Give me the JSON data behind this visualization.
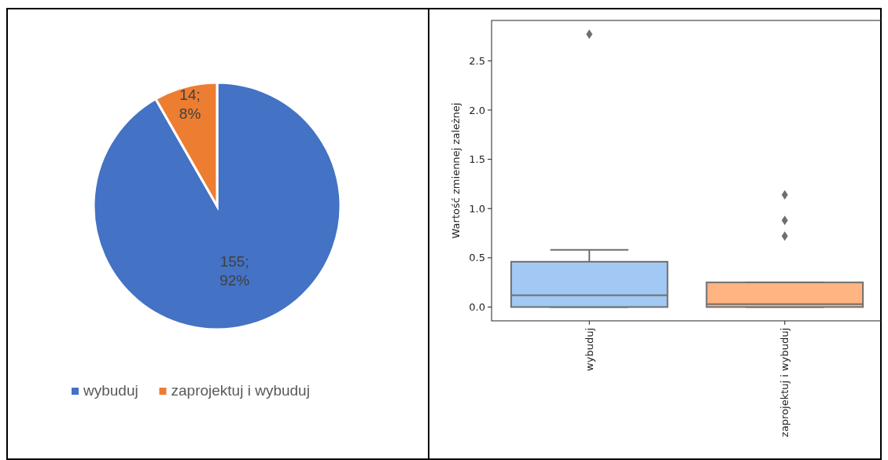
{
  "chart_data": [
    {
      "type": "pie",
      "categories": [
        "wybuduj",
        "zaprojektuj i wybuduj"
      ],
      "values": [
        155,
        14
      ],
      "colors": [
        "#4472c4",
        "#ed7d31"
      ],
      "value_labels": [
        "155; 92%",
        "14; 8%"
      ],
      "legend": "bottom"
    },
    {
      "type": "box",
      "categories": [
        "wybuduj",
        "zaprojektuj i wybuduj"
      ],
      "ylabel": "Wartość zmiennej zależnej",
      "ylim": [
        -0.14,
        2.91
      ],
      "yticks": [
        {
          "value": 0,
          "label": "0.0"
        },
        0.5,
        {
          "value": 1,
          "label": "1.0"
        },
        1.5,
        {
          "value": 2,
          "label": "2.0"
        },
        2.5
      ],
      "colors": [
        "#a1c9f4",
        "#ffb482"
      ],
      "boxes": [
        {
          "low": 0,
          "q1": 0,
          "median": 0.12,
          "q3": 0.46,
          "high": 0.58,
          "outliers": [
            2.77
          ]
        },
        {
          "low": 0,
          "q1": 0,
          "median": 0.03,
          "q3": 0.25,
          "high": 0.25,
          "outliers": [
            0.72,
            0.88,
            1.14
          ]
        }
      ]
    }
  ]
}
